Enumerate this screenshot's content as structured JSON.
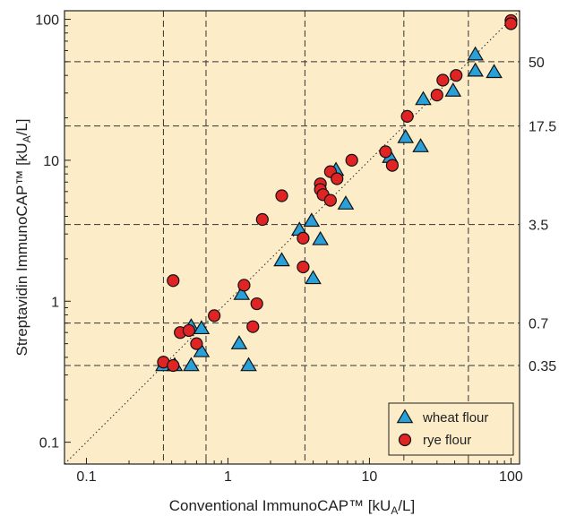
{
  "chart_data": {
    "type": "scatter",
    "xscale": "log",
    "yscale": "log",
    "xlim": [
      0.07,
      115
    ],
    "ylim": [
      0.07,
      115
    ],
    "xlabel": {
      "main": "Conventional ImmunoCAP™ [kU",
      "sub": "A",
      "tail": "/L]"
    },
    "ylabel": {
      "main": "Streptavidin ImmunoCAP™ [kU",
      "sub": "A",
      "tail": "/L]"
    },
    "x_ticks": [
      {
        "value": 0.1,
        "label": "0.1"
      },
      {
        "value": 1,
        "label": "1"
      },
      {
        "value": 10,
        "label": "10"
      },
      {
        "value": 100,
        "label": "100"
      }
    ],
    "y_ticks": [
      {
        "value": 0.1,
        "label": "0.1"
      },
      {
        "value": 1,
        "label": "1"
      },
      {
        "value": 10,
        "label": "10"
      },
      {
        "value": 100,
        "label": "100"
      }
    ],
    "cutoffs": [
      {
        "value": 0.35,
        "label": "0.35"
      },
      {
        "value": 0.7,
        "label": "0.7"
      },
      {
        "value": 3.5,
        "label": "3.5"
      },
      {
        "value": 17.5,
        "label": "17.5"
      },
      {
        "value": 50,
        "label": "50"
      }
    ],
    "grid": "dashed lines at class cut-offs",
    "reference_line": "identity (y = x), dotted",
    "legend_position": "bottom-right",
    "series": [
      {
        "name": "wheat flour",
        "marker": "triangle",
        "color": "#2aa0d8",
        "points": [
          [
            0.35,
            0.35
          ],
          [
            0.42,
            0.35
          ],
          [
            0.55,
            0.35
          ],
          [
            0.55,
            0.66
          ],
          [
            0.65,
            0.64
          ],
          [
            0.65,
            0.44
          ],
          [
            1.2,
            0.5
          ],
          [
            1.25,
            1.12
          ],
          [
            1.4,
            0.35
          ],
          [
            2.4,
            1.94
          ],
          [
            3.2,
            3.2
          ],
          [
            3.9,
            3.7
          ],
          [
            4.0,
            1.45
          ],
          [
            4.5,
            2.74
          ],
          [
            5.8,
            8.5
          ],
          [
            6.8,
            4.9
          ],
          [
            14,
            10.5
          ],
          [
            18,
            14.5
          ],
          [
            23,
            12.5
          ],
          [
            24,
            27
          ],
          [
            39,
            31
          ],
          [
            56,
            56
          ],
          [
            56,
            43
          ],
          [
            76,
            42
          ]
        ]
      },
      {
        "name": "rye flour",
        "marker": "circle",
        "color": "#e02424",
        "points": [
          [
            0.35,
            0.37
          ],
          [
            0.41,
            0.35
          ],
          [
            0.41,
            1.4
          ],
          [
            0.46,
            0.6
          ],
          [
            0.53,
            0.62
          ],
          [
            0.6,
            0.5
          ],
          [
            0.8,
            0.79
          ],
          [
            1.3,
            1.3
          ],
          [
            1.5,
            0.66
          ],
          [
            1.6,
            0.96
          ],
          [
            1.75,
            3.8
          ],
          [
            2.4,
            5.6
          ],
          [
            3.4,
            1.75
          ],
          [
            3.4,
            2.8
          ],
          [
            4.5,
            6.8
          ],
          [
            4.5,
            6.2
          ],
          [
            4.7,
            5.7
          ],
          [
            5.3,
            5.2
          ],
          [
            5.3,
            8.3
          ],
          [
            5.9,
            7.4
          ],
          [
            7.5,
            10.0
          ],
          [
            13.0,
            11.5
          ],
          [
            14.5,
            9.2
          ],
          [
            18.5,
            20.5
          ],
          [
            30.0,
            29.0
          ],
          [
            33.0,
            37.0
          ],
          [
            41.0,
            40.0
          ],
          [
            100,
            98
          ],
          [
            100,
            93
          ]
        ]
      }
    ]
  }
}
